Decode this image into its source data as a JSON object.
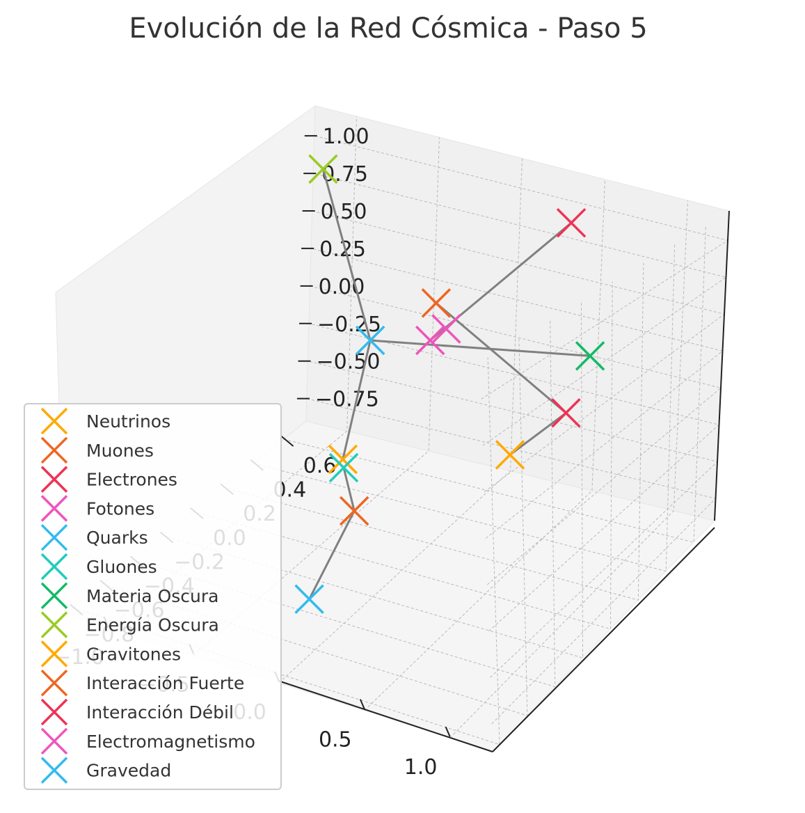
{
  "chart_data": {
    "type": "scatter",
    "projection": "3d",
    "title": "Evolución de la Red Cósmica - Paso 5",
    "grid": true,
    "legend_position": "lower-left",
    "xlabel": "",
    "ylabel": "",
    "zlabel": "",
    "x_ticks": [
      "−1.0",
      "−0.5",
      "0.0",
      "0.5",
      "1.0"
    ],
    "y_ticks": [
      "−0.8",
      "−0.6",
      "−0.4",
      "−0.2",
      "0.0",
      "0.2",
      "0.4",
      "0.6"
    ],
    "z_ticks": [
      "−0.75",
      "−0.50",
      "−0.25",
      "0.00",
      "0.25",
      "0.50",
      "0.75",
      "1.00"
    ],
    "xlim": [
      -1.25,
      1.25
    ],
    "ylim": [
      -0.85,
      0.75
    ],
    "zlim": [
      -0.9,
      1.2
    ],
    "series": [
      {
        "name": "Neutrinos",
        "color": "#ffaa00",
        "point": {
          "x": -0.4,
          "y": 0.05,
          "z": -0.35
        }
      },
      {
        "name": "Muones",
        "color": "#ee6622",
        "point": {
          "x": -0.35,
          "y": 0.6,
          "z": 0.25
        }
      },
      {
        "name": "Electrones",
        "color": "#ee3355",
        "point": {
          "x": 0.4,
          "y": 0.65,
          "z": 0.95
        }
      },
      {
        "name": "Fotones",
        "color": "#ee55bb",
        "point": {
          "x": -0.15,
          "y": 0.45,
          "z": 0.25
        }
      },
      {
        "name": "Quarks",
        "color": "#33bbee",
        "point": {
          "x": -0.65,
          "y": 0.5,
          "z": 0.0
        }
      },
      {
        "name": "Gluones",
        "color": "#22ccbb",
        "point": {
          "x": -0.35,
          "y": 0.0,
          "z": -0.35
        }
      },
      {
        "name": "Materia Oscura",
        "color": "#11bb66",
        "point": {
          "x": 0.85,
          "y": 0.3,
          "z": 0.45
        }
      },
      {
        "name": "Energía Oscura",
        "color": "#99cc22",
        "point": {
          "x": -1.05,
          "y": 0.6,
          "z": 0.95
        }
      },
      {
        "name": "Gravitones",
        "color": "#ffaa00",
        "point": {
          "x": 0.6,
          "y": 0.05,
          "z": -0.05
        }
      },
      {
        "name": "Interacción Fuerte",
        "color": "#ee6622",
        "point": {
          "x": 0.25,
          "y": -0.6,
          "z": 0.0
        }
      },
      {
        "name": "Interacción Débil",
        "color": "#ee3355",
        "point": {
          "x": 0.8,
          "y": 0.2,
          "z": 0.15
        }
      },
      {
        "name": "Electromagnetismo",
        "color": "#ee55bb",
        "point": {
          "x": -0.2,
          "y": 0.4,
          "z": 0.2
        }
      },
      {
        "name": "Gravedad",
        "color": "#33bbee",
        "point": {
          "x": 0.15,
          "y": -0.8,
          "z": -0.4
        }
      }
    ],
    "connections": [
      [
        "Energía Oscura",
        "Quarks"
      ],
      [
        "Quarks",
        "Neutrinos"
      ],
      [
        "Quarks",
        "Materia Oscura"
      ],
      [
        "Electrones",
        "Electromagnetismo"
      ],
      [
        "Muones",
        "Interacción Débil"
      ],
      [
        "Interacción Débil",
        "Gravitones"
      ],
      [
        "Gluones",
        "Interacción Fuerte"
      ],
      [
        "Interacción Fuerte",
        "Gravedad"
      ]
    ]
  }
}
